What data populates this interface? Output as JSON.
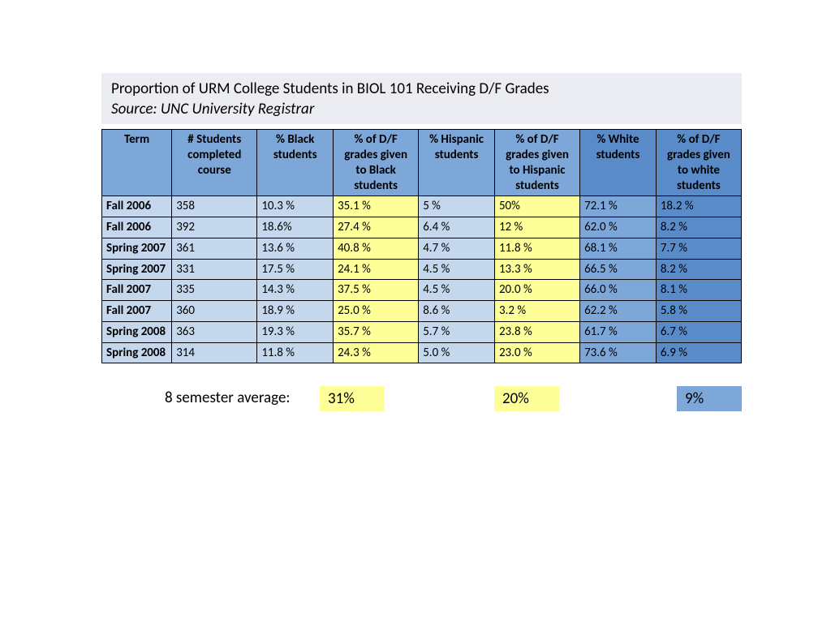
{
  "header": {
    "title": "Proportion of URM College Students in BIOL 101 Receiving D/F Grades",
    "source": "Source: UNC University Registrar"
  },
  "table": {
    "columns": [
      "Term",
      "# Students completed course",
      "% Black students",
      "% of D/F grades given to Black students",
      "% Hispanic students",
      "% of D/F grades given to Hispanic students",
      "% White students",
      "% of D/F grades given to white students"
    ],
    "header_styles": [
      "hdr-mid",
      "hdr-mid",
      "hdr-mid",
      "hdr-mid",
      "hdr-mid",
      "hdr-mid",
      "hdr-dark",
      "hdr-dark"
    ],
    "col_classes": [
      "col-term",
      "col-n",
      "col-pct",
      "col-df",
      "col-pct",
      "col-df",
      "col-pct",
      "col-df"
    ],
    "cell_styles": [
      "term-cell",
      "light",
      "light",
      "yellow",
      "light",
      "yellow",
      "mid",
      "dark"
    ],
    "rows": [
      [
        "Fall 2006",
        "358",
        "10.3 %",
        "35.1 %",
        "5 %",
        "50%",
        "72.1 %",
        "18.2 %"
      ],
      [
        "Fall 2006",
        "392",
        "18.6%",
        "27.4 %",
        "6.4 %",
        "12 %",
        "62.0 %",
        "8.2 %"
      ],
      [
        "Spring 2007",
        "361",
        "13.6 %",
        "40.8 %",
        "4.7 %",
        "11.8 %",
        "68.1 %",
        "7.7 %"
      ],
      [
        "Spring 2007",
        "331",
        "17.5 %",
        "24.1 %",
        "4.5 %",
        "13.3 %",
        "66.5 %",
        "8.2 %"
      ],
      [
        "Fall 2007",
        "335",
        "14.3 %",
        "37.5 %",
        "4.5 %",
        "20.0 %",
        "66.0 %",
        "8.1 %"
      ],
      [
        "Fall 2007",
        "360",
        "18.9 %",
        "25.0 %",
        "8.6 %",
        "3.2 %",
        "62.2 %",
        "5.8 %"
      ],
      [
        "Spring 2008",
        "363",
        "19.3 %",
        "35.7 %",
        "5.7 %",
        "23.8 %",
        "61.7 %",
        "6.7 %"
      ],
      [
        "Spring 2008",
        "314",
        "11.8 %",
        "24.3 %",
        "5.0 %",
        "23.0 %",
        "73.6 %",
        "6.9 %"
      ]
    ]
  },
  "summary": {
    "label": "8 semester average:",
    "values": [
      "31%",
      "20%",
      "9%"
    ]
  }
}
